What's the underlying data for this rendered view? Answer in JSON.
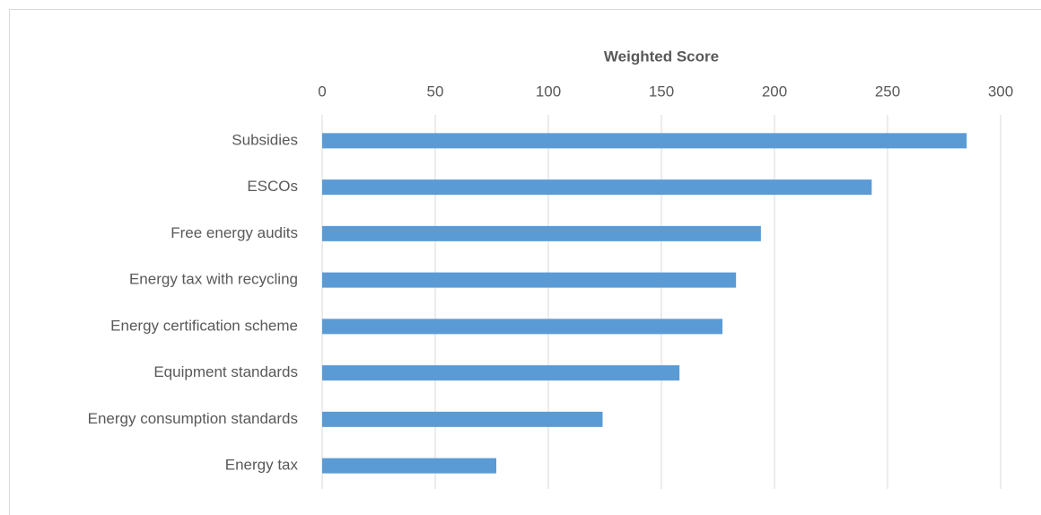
{
  "chart_data": {
    "type": "bar",
    "orientation": "horizontal",
    "x_label": "Weighted Score",
    "categories": [
      "Subsidies",
      "ESCOs",
      "Free energy audits",
      "Energy tax with recycling",
      "Energy certification scheme",
      "Equipment standards",
      "Energy consumption standards",
      "Energy tax"
    ],
    "values": [
      285,
      243,
      194,
      183,
      177,
      158,
      124,
      77
    ],
    "color": "#5b9bd5",
    "xlim": [
      0,
      300
    ],
    "xticks": [
      0,
      50,
      100,
      150,
      200,
      250,
      300
    ],
    "grid": true
  }
}
